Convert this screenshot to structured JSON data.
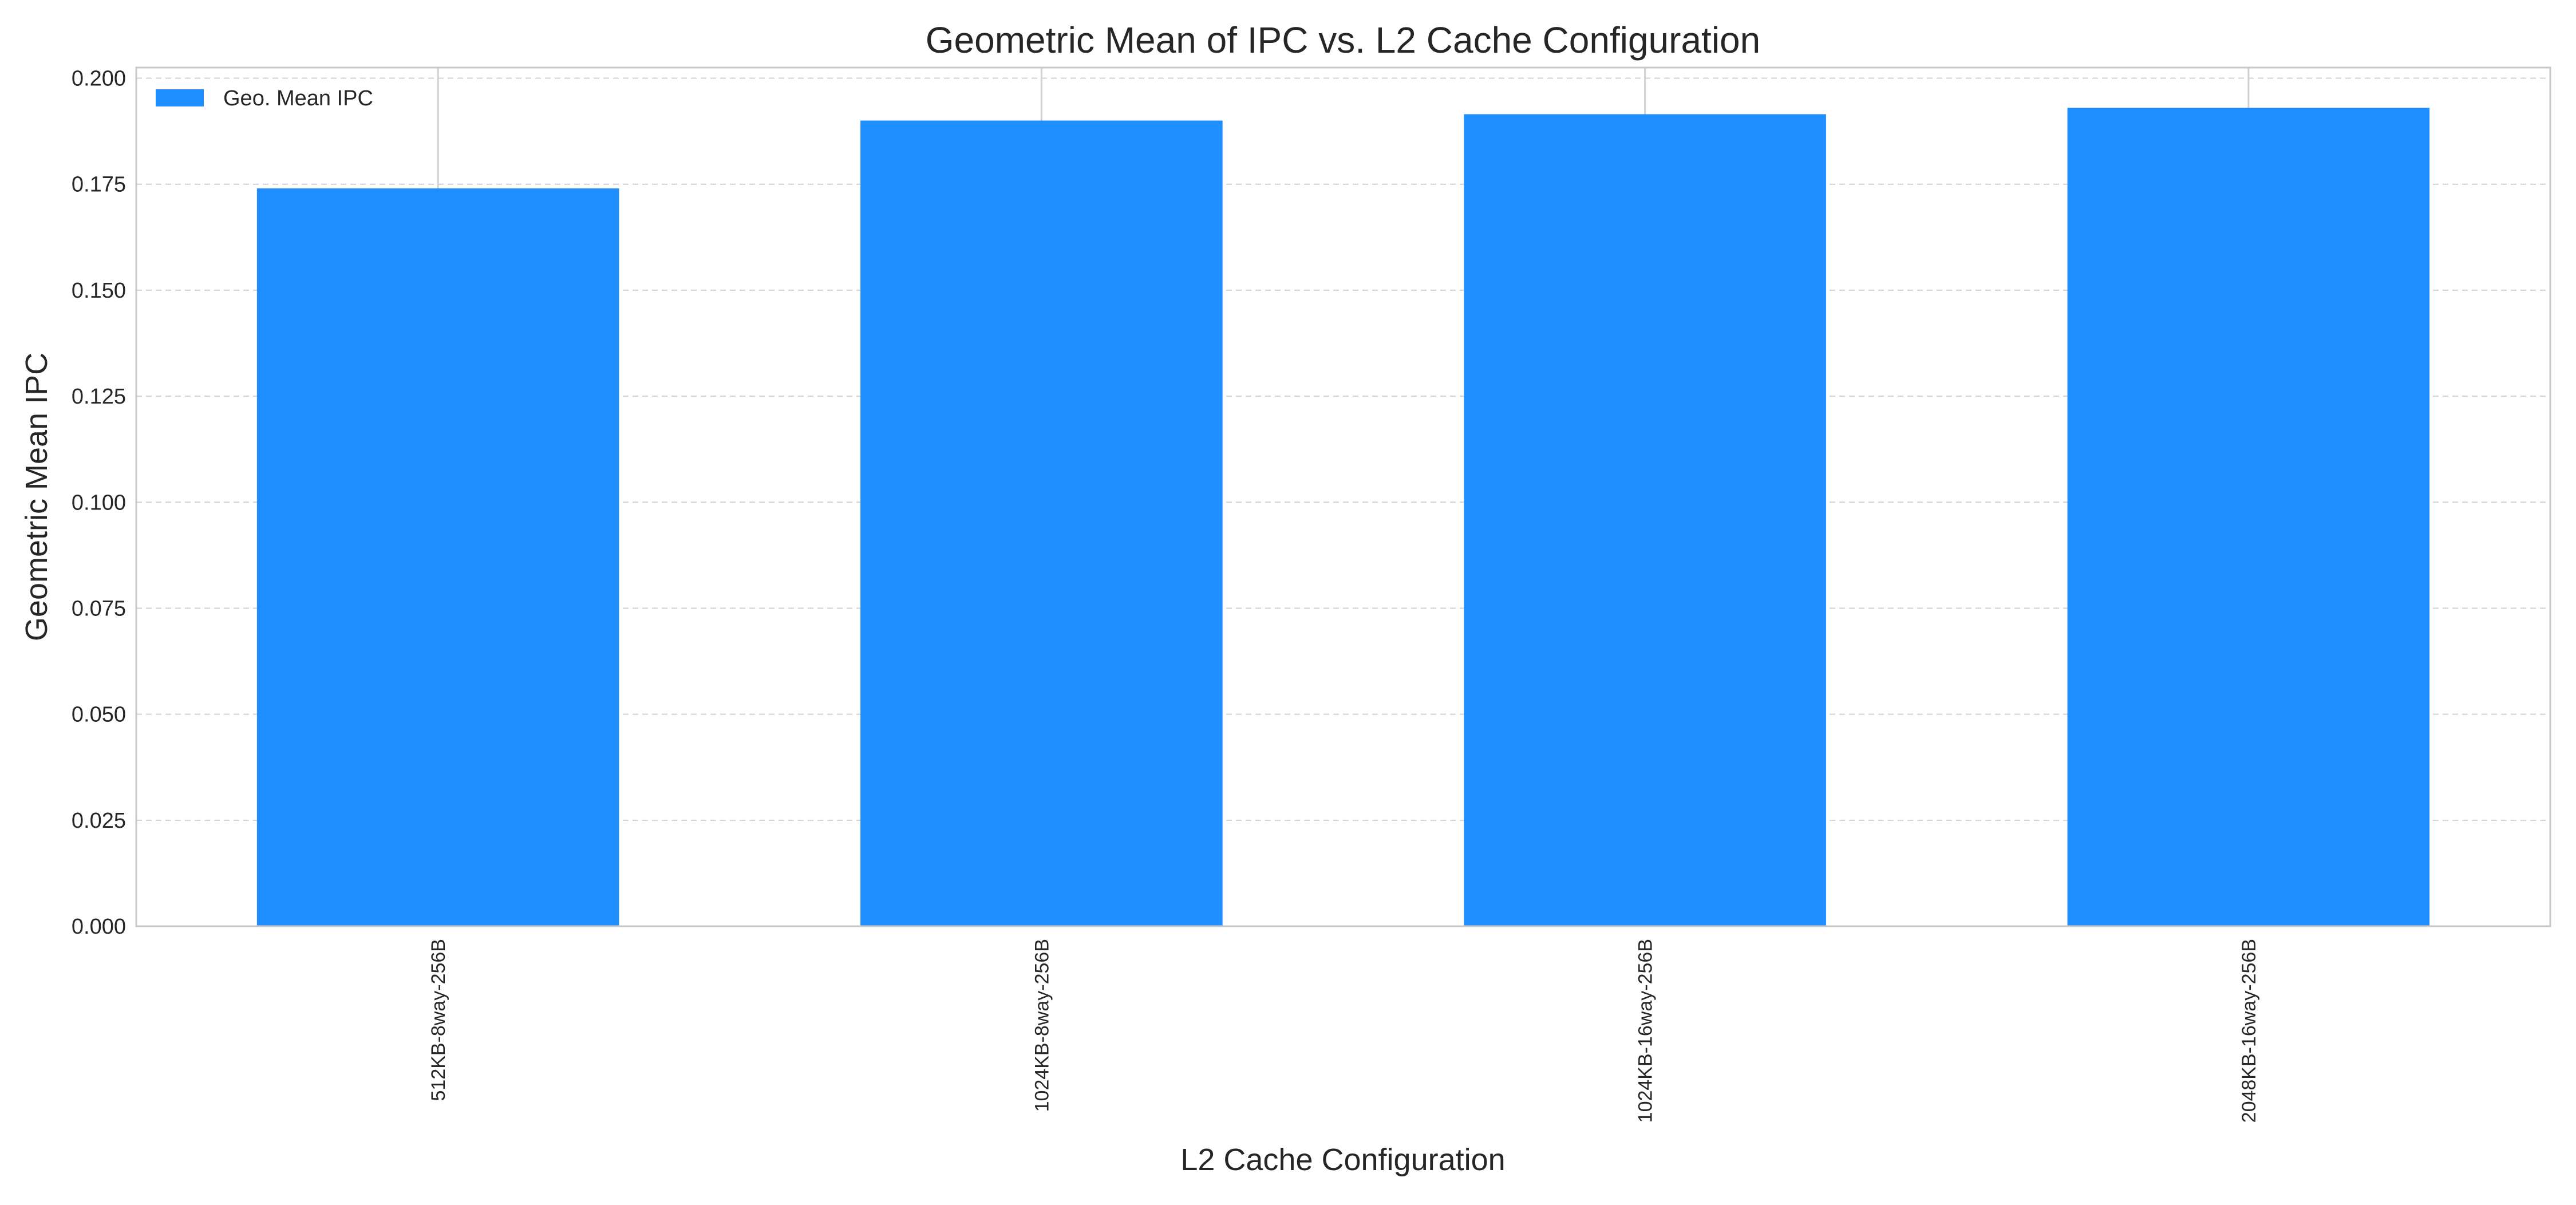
{
  "chart_data": {
    "type": "bar",
    "title": "Geometric Mean of IPC vs. L2 Cache Configuration",
    "xlabel": "L2 Cache Configuration",
    "ylabel": "Geometric Mean IPC",
    "categories": [
      "512KB-8way-256B",
      "1024KB-8way-256B",
      "1024KB-16way-256B",
      "2048KB-16way-256B"
    ],
    "series": [
      {
        "name": "Geo. Mean IPC",
        "values": [
          0.174,
          0.19,
          0.1915,
          0.193
        ]
      }
    ],
    "ylim": [
      0,
      0.2025
    ],
    "yticks": [
      "0.000",
      "0.025",
      "0.050",
      "0.075",
      "0.100",
      "0.125",
      "0.150",
      "0.175",
      "0.200"
    ],
    "ytick_values": [
      0,
      0.025,
      0.05,
      0.075,
      0.1,
      0.125,
      0.15,
      0.175,
      0.2
    ],
    "grid": "y-dashed",
    "legend_position": "top-left",
    "bar_color": "#1f8fff",
    "grid_color": "#d0d0d0",
    "axis_color": "#c8c8c8"
  }
}
